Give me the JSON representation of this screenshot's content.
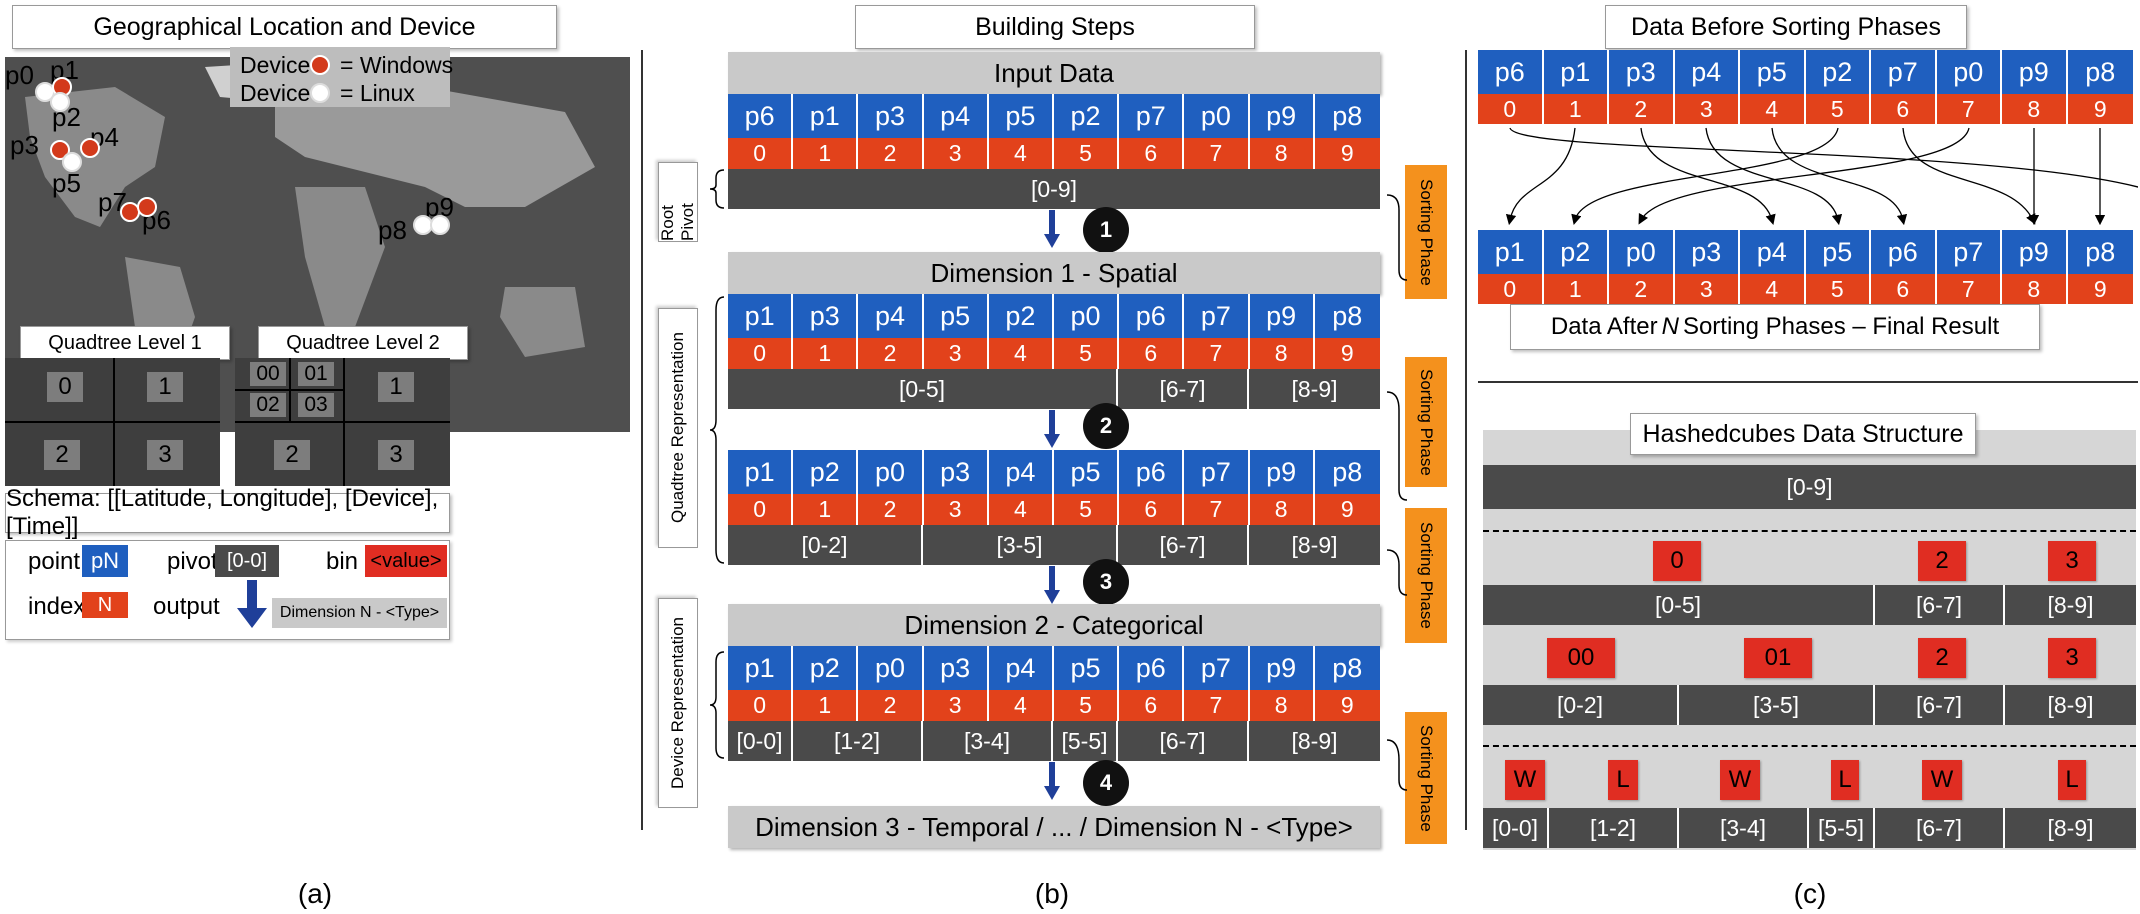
{
  "panel_a": {
    "title": "Geographical Location and Device",
    "legend_windows_prefix": "Device",
    "legend_windows": "= Windows",
    "legend_linux_prefix": "Device",
    "legend_linux": "= Linux",
    "points": [
      "p0",
      "p1",
      "p2",
      "p3",
      "p4",
      "p5",
      "p7",
      "p6",
      "p8",
      "p9"
    ],
    "quad1_title": "Quadtree Level 1",
    "quad2_title": "Quadtree Level 2",
    "quad1_cells": [
      "0",
      "1",
      "2",
      "3"
    ],
    "quad2_cells": [
      "00",
      "01",
      "02",
      "03",
      "1",
      "2",
      "3"
    ],
    "schema": "Schema: [[Latitude, Longitude], [Device], [Time]]",
    "key_point": "point",
    "key_point_box": "pN",
    "key_pivot": "pivot",
    "key_pivot_box": "[0-0]",
    "key_bin": "bin",
    "key_bin_box": "<value>",
    "key_index": "index",
    "key_index_box": "N",
    "key_output": "output",
    "key_output_box": "Dimension N - <Type>",
    "caption": "(a)"
  },
  "panel_b": {
    "title": "Building Steps",
    "input_data": "Input Data",
    "row0": [
      "p6",
      "p1",
      "p3",
      "p4",
      "p5",
      "p2",
      "p7",
      "p0",
      "p9",
      "p8"
    ],
    "idx": [
      "0",
      "1",
      "2",
      "3",
      "4",
      "5",
      "6",
      "7",
      "8",
      "9"
    ],
    "root_range": "[0-9]",
    "root_pivot_label": "Root Pivot",
    "dim1": "Dimension 1 - Spatial",
    "row1": [
      "p1",
      "p3",
      "p4",
      "p5",
      "p2",
      "p0",
      "p6",
      "p7",
      "p9",
      "p8"
    ],
    "ranges1": [
      "[0-5]",
      "[6-7]",
      "[8-9]"
    ],
    "row2": [
      "p1",
      "p2",
      "p0",
      "p3",
      "p4",
      "p5",
      "p6",
      "p7",
      "p9",
      "p8"
    ],
    "ranges2": [
      "[0-2]",
      "[3-5]",
      "[6-7]",
      "[8-9]"
    ],
    "quadtree_label": "Quadtree Representation",
    "dim2": "Dimension 2 - Categorical",
    "row3": [
      "p1",
      "p2",
      "p0",
      "p3",
      "p4",
      "p5",
      "p6",
      "p7",
      "p9",
      "p8"
    ],
    "ranges3": [
      "[0-0]",
      "[1-2]",
      "[3-4]",
      "[5-5]",
      "[6-7]",
      "[8-9]"
    ],
    "device_label": "Device Representation",
    "dim3": "Dimension 3 - Temporal / ... / Dimension N - <Type>",
    "sorting_phase": "Sorting Phase",
    "steps": [
      "1",
      "2",
      "3",
      "4"
    ],
    "caption": "(b)"
  },
  "panel_c": {
    "title_before": "Data Before Sorting Phases",
    "before": [
      "p6",
      "p1",
      "p3",
      "p4",
      "p5",
      "p2",
      "p7",
      "p0",
      "p9",
      "p8"
    ],
    "after": [
      "p1",
      "p2",
      "p0",
      "p3",
      "p4",
      "p5",
      "p6",
      "p7",
      "p9",
      "p8"
    ],
    "idx": [
      "0",
      "1",
      "2",
      "3",
      "4",
      "5",
      "6",
      "7",
      "8",
      "9"
    ],
    "after_label_pre": "Data After ",
    "after_label_n": "N",
    "after_label_post": " Sorting Phases – Final Result",
    "hc_title": "Hashedcubes Data Structure",
    "hc_root": "[0-9]",
    "hc_l1_bins": [
      "0",
      "2",
      "3"
    ],
    "hc_l1_ranges": [
      "[0-5]",
      "[6-7]",
      "[8-9]"
    ],
    "hc_l2_bins": [
      "00",
      "01",
      "2",
      "3"
    ],
    "hc_l2_ranges": [
      "[0-2]",
      "[3-5]",
      "[6-7]",
      "[8-9]"
    ],
    "hc_l3_bins": [
      "W",
      "L",
      "W",
      "L",
      "W",
      "L"
    ],
    "hc_l3_ranges": [
      "[0-0]",
      "[1-2]",
      "[3-4]",
      "[5-5]",
      "[6-7]",
      "[8-9]"
    ],
    "caption": "(c)"
  },
  "colors": {
    "point": "#1f5fbf",
    "index": "#e2421b",
    "pivot": "#4a4a4a",
    "bin": "#e02d22",
    "sorting": "#f4911d"
  }
}
